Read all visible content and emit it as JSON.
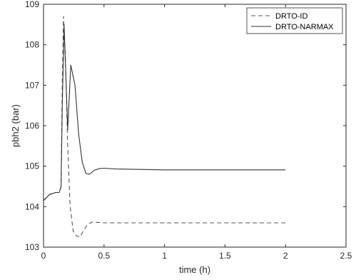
{
  "chart_data": {
    "type": "line",
    "xlabel": "time (h)",
    "ylabel": "pbh2 (bar)",
    "xlim": [
      0,
      2.5
    ],
    "ylim": [
      103,
      109
    ],
    "xticks": [
      "0",
      "0.5",
      "1",
      "1.5",
      "2",
      "2.5"
    ],
    "yticks": [
      "103",
      "104",
      "105",
      "106",
      "107",
      "108",
      "109"
    ],
    "grid": false,
    "legend_position": "top-right",
    "series": [
      {
        "name": "DRTO-ID",
        "style": "dashed",
        "color": "#555555",
        "x": [
          0,
          0.05,
          0.1,
          0.13,
          0.145,
          0.155,
          0.165,
          0.18,
          0.2,
          0.22,
          0.245,
          0.27,
          0.3,
          0.33,
          0.36,
          0.4,
          0.45,
          0.5,
          0.6,
          0.8,
          1.0,
          1.5,
          2.0
        ],
        "y": [
          104.15,
          104.3,
          104.35,
          104.35,
          104.5,
          107.0,
          108.7,
          107.8,
          105.5,
          104.0,
          103.4,
          103.28,
          103.25,
          103.4,
          103.55,
          103.62,
          103.61,
          103.6,
          103.6,
          103.6,
          103.6,
          103.6,
          103.6
        ]
      },
      {
        "name": "DRTO-NARMAX",
        "style": "solid",
        "color": "#333333",
        "x": [
          0,
          0.05,
          0.1,
          0.13,
          0.145,
          0.155,
          0.17,
          0.2,
          0.225,
          0.26,
          0.29,
          0.32,
          0.35,
          0.38,
          0.42,
          0.46,
          0.5,
          0.6,
          0.8,
          1.0,
          1.5,
          2.0
        ],
        "y": [
          104.15,
          104.3,
          104.35,
          104.35,
          104.5,
          106.5,
          108.5,
          105.9,
          107.5,
          107.0,
          105.8,
          105.1,
          104.82,
          104.8,
          104.9,
          104.94,
          104.95,
          104.93,
          104.92,
          104.91,
          104.91,
          104.91
        ]
      }
    ]
  }
}
